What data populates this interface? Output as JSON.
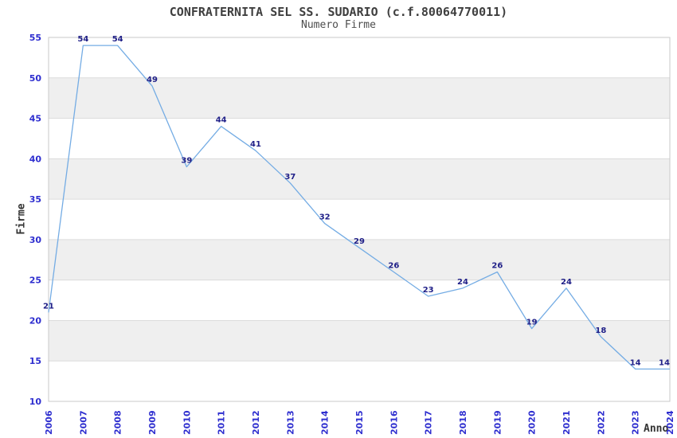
{
  "chart_data": {
    "type": "line",
    "title": "CONFRATERNITA SEL SS. SUDARIO (c.f.80064770011)",
    "subtitle": "Numero Firme",
    "xlabel": "Anno",
    "ylabel": "Firme",
    "categories": [
      "2006",
      "2007",
      "2008",
      "2009",
      "2010",
      "2011",
      "2012",
      "2013",
      "2014",
      "2015",
      "2016",
      "2017",
      "2018",
      "2019",
      "2020",
      "2021",
      "2022",
      "2023",
      "2024"
    ],
    "values": [
      21,
      54,
      54,
      49,
      39,
      44,
      41,
      37,
      32,
      29,
      26,
      23,
      24,
      26,
      19,
      24,
      18,
      14,
      14
    ],
    "ylim": [
      10,
      55
    ],
    "ytick_step": 5,
    "grid": "horizontal-bands-alternating",
    "legend": "none",
    "data_labels": true,
    "colors": {
      "line": "#74ACE4",
      "band_gray": "#EFEFEF",
      "gridline": "#DCDCDC",
      "plot_border": "#C8C8C8",
      "tick_label": "#2E2ECF",
      "data_label": "#202088",
      "title": "#3F3F3F",
      "subtitle": "#4D4D4D",
      "axis_title": "#333333",
      "background": "#FFFFFF"
    }
  }
}
